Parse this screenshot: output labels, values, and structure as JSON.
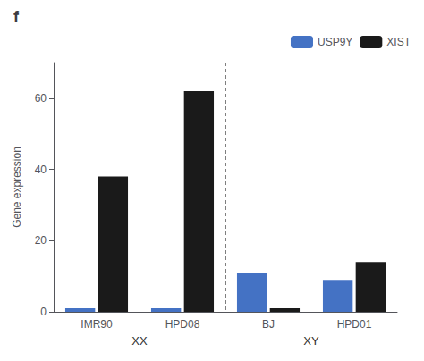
{
  "chart_data": {
    "type": "bar",
    "title": "f",
    "categories": [
      "IMR90",
      "HPD08",
      "BJ",
      "HPD01"
    ],
    "series": [
      {
        "name": "USP9Y",
        "color": "#4472C4",
        "values": [
          1.0,
          1.0,
          11.0,
          9.0
        ]
      },
      {
        "name": "XIST",
        "color": "#1a1a1a",
        "values": [
          38.0,
          62.0,
          1.0,
          14.0
        ]
      }
    ],
    "ylabel": "Gene expression",
    "ylim": [
      0,
      70
    ],
    "yticks": [
      0,
      20,
      40,
      60
    ],
    "grid": false,
    "legend": "upper right",
    "annotations": [
      "XX",
      "XY"
    ]
  }
}
